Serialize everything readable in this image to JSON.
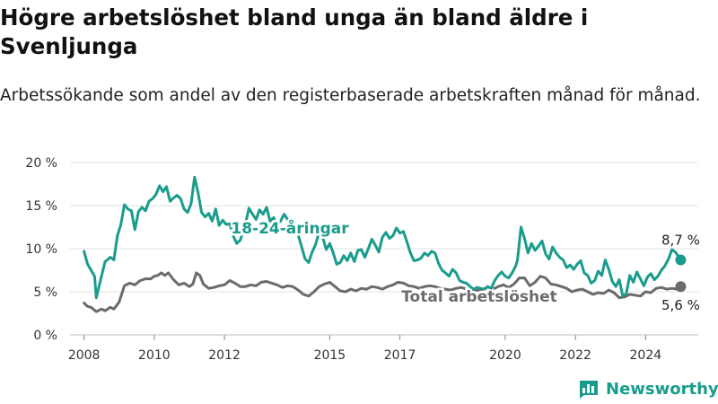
{
  "title": "Högre arbetslöshet bland unga än bland äldre i Svenljunga",
  "subtitle": "Arbetssökande som andel av den registerbaserade arbetskraften månad för månad.",
  "brand": {
    "name": "Newsworthy",
    "icon": "bar-chart-logo-icon",
    "color": "#1a9c8c"
  },
  "chart_data": {
    "type": "line",
    "ylim": [
      0,
      20
    ],
    "xlim": [
      2007.6,
      2025.5
    ],
    "y_ticks": [
      0,
      5,
      10,
      15,
      20
    ],
    "y_tick_labels": [
      "0 %",
      "5 %",
      "10 %",
      "15 %",
      "20 %"
    ],
    "x_ticks": [
      2008,
      2010,
      2012,
      2015,
      2017,
      2020,
      2022,
      2024
    ],
    "x_tick_labels": [
      "2008",
      "2010",
      "2012",
      "2015",
      "2017",
      "2020",
      "2022",
      "2024"
    ],
    "grid": true,
    "series": [
      {
        "name": "18-24-åringar",
        "color": "#1a9c8c",
        "end_label": "8,7 %",
        "points": [
          [
            2008.0,
            9.7
          ],
          [
            2008.1,
            8.2
          ],
          [
            2008.2,
            7.5
          ],
          [
            2008.3,
            6.8
          ],
          [
            2008.35,
            4.3
          ],
          [
            2008.45,
            6.0
          ],
          [
            2008.6,
            8.5
          ],
          [
            2008.75,
            9.0
          ],
          [
            2008.85,
            8.7
          ],
          [
            2008.95,
            11.5
          ],
          [
            2009.05,
            12.8
          ],
          [
            2009.15,
            15.1
          ],
          [
            2009.25,
            14.6
          ],
          [
            2009.35,
            14.4
          ],
          [
            2009.45,
            12.2
          ],
          [
            2009.55,
            14.3
          ],
          [
            2009.65,
            14.8
          ],
          [
            2009.75,
            14.4
          ],
          [
            2009.85,
            15.5
          ],
          [
            2009.95,
            15.8
          ],
          [
            2010.05,
            16.3
          ],
          [
            2010.15,
            17.3
          ],
          [
            2010.25,
            16.6
          ],
          [
            2010.35,
            17.2
          ],
          [
            2010.45,
            15.5
          ],
          [
            2010.55,
            15.9
          ],
          [
            2010.65,
            16.2
          ],
          [
            2010.75,
            15.8
          ],
          [
            2010.85,
            14.6
          ],
          [
            2010.95,
            14.2
          ],
          [
            2011.05,
            15.2
          ],
          [
            2011.15,
            18.3
          ],
          [
            2011.25,
            16.5
          ],
          [
            2011.35,
            14.2
          ],
          [
            2011.45,
            13.7
          ],
          [
            2011.55,
            14.1
          ],
          [
            2011.65,
            13.2
          ],
          [
            2011.75,
            14.6
          ],
          [
            2011.85,
            12.7
          ],
          [
            2011.95,
            13.3
          ],
          [
            2012.05,
            12.8
          ],
          [
            2012.15,
            12.9
          ],
          [
            2012.25,
            11.5
          ],
          [
            2012.35,
            10.6
          ],
          [
            2012.45,
            11.0
          ],
          [
            2012.6,
            12.9
          ],
          [
            2012.7,
            14.7
          ],
          [
            2012.8,
            14.0
          ],
          [
            2012.9,
            13.4
          ],
          [
            2013.0,
            14.5
          ],
          [
            2013.1,
            14.0
          ],
          [
            2013.2,
            14.8
          ],
          [
            2013.3,
            13.2
          ],
          [
            2013.4,
            13.6
          ],
          [
            2013.5,
            12.9
          ],
          [
            2013.6,
            13.2
          ],
          [
            2013.7,
            14.0
          ],
          [
            2013.8,
            13.4
          ],
          [
            2013.9,
            13.1
          ],
          [
            2014.0,
            12.5
          ],
          [
            2014.1,
            11.6
          ],
          [
            2014.2,
            10.2
          ],
          [
            2014.3,
            8.8
          ],
          [
            2014.4,
            8.4
          ],
          [
            2014.5,
            9.6
          ],
          [
            2014.6,
            10.5
          ],
          [
            2014.7,
            12.0
          ],
          [
            2014.8,
            11.3
          ],
          [
            2014.9,
            9.9
          ],
          [
            2015.0,
            10.6
          ],
          [
            2015.1,
            9.5
          ],
          [
            2015.2,
            8.2
          ],
          [
            2015.3,
            8.4
          ],
          [
            2015.4,
            9.2
          ],
          [
            2015.5,
            8.6
          ],
          [
            2015.6,
            9.5
          ],
          [
            2015.7,
            8.5
          ],
          [
            2015.8,
            9.8
          ],
          [
            2015.9,
            9.9
          ],
          [
            2016.0,
            9.0
          ],
          [
            2016.1,
            10.0
          ],
          [
            2016.2,
            11.1
          ],
          [
            2016.3,
            10.4
          ],
          [
            2016.4,
            9.6
          ],
          [
            2016.5,
            11.3
          ],
          [
            2016.6,
            11.9
          ],
          [
            2016.7,
            11.2
          ],
          [
            2016.8,
            11.5
          ],
          [
            2016.9,
            12.4
          ],
          [
            2017.0,
            11.8
          ],
          [
            2017.1,
            12.0
          ],
          [
            2017.2,
            10.8
          ],
          [
            2017.3,
            9.5
          ],
          [
            2017.4,
            8.6
          ],
          [
            2017.5,
            8.7
          ],
          [
            2017.6,
            8.9
          ],
          [
            2017.7,
            9.5
          ],
          [
            2017.8,
            9.2
          ],
          [
            2017.9,
            9.7
          ],
          [
            2018.0,
            9.5
          ],
          [
            2018.1,
            8.3
          ],
          [
            2018.2,
            7.5
          ],
          [
            2018.3,
            7.2
          ],
          [
            2018.4,
            6.8
          ],
          [
            2018.5,
            7.6
          ],
          [
            2018.6,
            7.2
          ],
          [
            2018.7,
            6.3
          ],
          [
            2018.8,
            6.1
          ],
          [
            2018.9,
            6.0
          ],
          [
            2019.0,
            5.6
          ],
          [
            2019.1,
            5.3
          ],
          [
            2019.2,
            5.5
          ],
          [
            2019.3,
            5.4
          ],
          [
            2019.4,
            5.3
          ],
          [
            2019.5,
            5.6
          ],
          [
            2019.6,
            5.4
          ],
          [
            2019.7,
            6.3
          ],
          [
            2019.8,
            6.9
          ],
          [
            2019.9,
            7.3
          ],
          [
            2020.0,
            6.8
          ],
          [
            2020.1,
            6.6
          ],
          [
            2020.2,
            7.2
          ],
          [
            2020.3,
            8.0
          ],
          [
            2020.35,
            8.7
          ],
          [
            2020.45,
            12.5
          ],
          [
            2020.55,
            11.2
          ],
          [
            2020.65,
            9.5
          ],
          [
            2020.75,
            10.6
          ],
          [
            2020.85,
            9.8
          ],
          [
            2020.95,
            10.3
          ],
          [
            2021.05,
            10.9
          ],
          [
            2021.15,
            9.4
          ],
          [
            2021.25,
            8.8
          ],
          [
            2021.35,
            10.2
          ],
          [
            2021.45,
            9.5
          ],
          [
            2021.55,
            9.0
          ],
          [
            2021.65,
            8.7
          ],
          [
            2021.75,
            7.8
          ],
          [
            2021.85,
            8.1
          ],
          [
            2021.95,
            7.6
          ],
          [
            2022.05,
            8.2
          ],
          [
            2022.15,
            8.6
          ],
          [
            2022.25,
            7.2
          ],
          [
            2022.35,
            6.9
          ],
          [
            2022.45,
            6.0
          ],
          [
            2022.55,
            6.3
          ],
          [
            2022.65,
            7.4
          ],
          [
            2022.75,
            6.9
          ],
          [
            2022.85,
            8.7
          ],
          [
            2022.95,
            7.6
          ],
          [
            2023.05,
            6.2
          ],
          [
            2023.15,
            5.6
          ],
          [
            2023.25,
            6.4
          ],
          [
            2023.35,
            4.5
          ],
          [
            2023.45,
            4.8
          ],
          [
            2023.55,
            6.9
          ],
          [
            2023.65,
            6.1
          ],
          [
            2023.75,
            7.3
          ],
          [
            2023.85,
            6.5
          ],
          [
            2023.95,
            5.7
          ],
          [
            2024.05,
            6.7
          ],
          [
            2024.15,
            7.1
          ],
          [
            2024.25,
            6.4
          ],
          [
            2024.35,
            6.8
          ],
          [
            2024.45,
            7.5
          ],
          [
            2024.55,
            8.0
          ],
          [
            2024.65,
            8.8
          ],
          [
            2024.75,
            9.9
          ],
          [
            2024.85,
            9.6
          ],
          [
            2025.0,
            8.7
          ]
        ]
      },
      {
        "name": "Total arbetslöshet",
        "color": "#6b6b6b",
        "end_label": "5,6 %",
        "points": [
          [
            2008.0,
            3.7
          ],
          [
            2008.1,
            3.3
          ],
          [
            2008.2,
            3.2
          ],
          [
            2008.35,
            2.7
          ],
          [
            2008.5,
            3.0
          ],
          [
            2008.6,
            2.8
          ],
          [
            2008.75,
            3.2
          ],
          [
            2008.85,
            3.0
          ],
          [
            2009.0,
            3.8
          ],
          [
            2009.15,
            5.7
          ],
          [
            2009.3,
            6.0
          ],
          [
            2009.45,
            5.8
          ],
          [
            2009.6,
            6.3
          ],
          [
            2009.75,
            6.5
          ],
          [
            2009.9,
            6.5
          ],
          [
            2010.0,
            6.8
          ],
          [
            2010.1,
            6.9
          ],
          [
            2010.2,
            7.2
          ],
          [
            2010.3,
            6.9
          ],
          [
            2010.4,
            7.2
          ],
          [
            2010.55,
            6.4
          ],
          [
            2010.7,
            5.8
          ],
          [
            2010.85,
            6.0
          ],
          [
            2011.0,
            5.6
          ],
          [
            2011.1,
            5.9
          ],
          [
            2011.2,
            7.2
          ],
          [
            2011.3,
            6.9
          ],
          [
            2011.4,
            5.9
          ],
          [
            2011.55,
            5.4
          ],
          [
            2011.7,
            5.5
          ],
          [
            2011.85,
            5.7
          ],
          [
            2012.0,
            5.8
          ],
          [
            2012.15,
            6.3
          ],
          [
            2012.3,
            6.0
          ],
          [
            2012.45,
            5.6
          ],
          [
            2012.6,
            5.6
          ],
          [
            2012.75,
            5.8
          ],
          [
            2012.9,
            5.7
          ],
          [
            2013.05,
            6.1
          ],
          [
            2013.2,
            6.2
          ],
          [
            2013.35,
            6.0
          ],
          [
            2013.5,
            5.8
          ],
          [
            2013.65,
            5.5
          ],
          [
            2013.8,
            5.7
          ],
          [
            2013.95,
            5.6
          ],
          [
            2014.1,
            5.2
          ],
          [
            2014.25,
            4.7
          ],
          [
            2014.4,
            4.5
          ],
          [
            2014.55,
            5.0
          ],
          [
            2014.7,
            5.6
          ],
          [
            2014.85,
            5.9
          ],
          [
            2015.0,
            6.1
          ],
          [
            2015.15,
            5.6
          ],
          [
            2015.3,
            5.1
          ],
          [
            2015.45,
            5.0
          ],
          [
            2015.6,
            5.3
          ],
          [
            2015.75,
            5.1
          ],
          [
            2015.9,
            5.4
          ],
          [
            2016.05,
            5.3
          ],
          [
            2016.2,
            5.6
          ],
          [
            2016.35,
            5.5
          ],
          [
            2016.5,
            5.3
          ],
          [
            2016.65,
            5.6
          ],
          [
            2016.8,
            5.8
          ],
          [
            2016.95,
            6.1
          ],
          [
            2017.1,
            6.0
          ],
          [
            2017.25,
            5.7
          ],
          [
            2017.4,
            5.6
          ],
          [
            2017.55,
            5.4
          ],
          [
            2017.7,
            5.6
          ],
          [
            2017.85,
            5.7
          ],
          [
            2018.0,
            5.6
          ],
          [
            2018.15,
            5.4
          ],
          [
            2018.3,
            5.3
          ],
          [
            2018.45,
            5.2
          ],
          [
            2018.6,
            5.4
          ],
          [
            2018.75,
            5.5
          ],
          [
            2018.9,
            5.3
          ],
          [
            2019.05,
            5.1
          ],
          [
            2019.2,
            5.2
          ],
          [
            2019.35,
            5.3
          ],
          [
            2019.5,
            5.4
          ],
          [
            2019.65,
            5.3
          ],
          [
            2019.8,
            5.6
          ],
          [
            2019.95,
            5.8
          ],
          [
            2020.1,
            5.5
          ],
          [
            2020.25,
            5.9
          ],
          [
            2020.4,
            6.6
          ],
          [
            2020.55,
            6.6
          ],
          [
            2020.7,
            5.7
          ],
          [
            2020.85,
            6.1
          ],
          [
            2021.0,
            6.8
          ],
          [
            2021.15,
            6.6
          ],
          [
            2021.3,
            5.9
          ],
          [
            2021.45,
            5.8
          ],
          [
            2021.6,
            5.6
          ],
          [
            2021.75,
            5.4
          ],
          [
            2021.9,
            5.0
          ],
          [
            2022.05,
            5.2
          ],
          [
            2022.2,
            5.3
          ],
          [
            2022.35,
            5.0
          ],
          [
            2022.5,
            4.7
          ],
          [
            2022.65,
            4.9
          ],
          [
            2022.8,
            4.8
          ],
          [
            2022.95,
            5.2
          ],
          [
            2023.1,
            4.9
          ],
          [
            2023.25,
            4.3
          ],
          [
            2023.4,
            4.4
          ],
          [
            2023.55,
            4.7
          ],
          [
            2023.7,
            4.6
          ],
          [
            2023.85,
            4.5
          ],
          [
            2024.0,
            5.0
          ],
          [
            2024.15,
            4.9
          ],
          [
            2024.3,
            5.4
          ],
          [
            2024.45,
            5.5
          ],
          [
            2024.6,
            5.3
          ],
          [
            2024.75,
            5.4
          ],
          [
            2024.9,
            5.3
          ],
          [
            2025.0,
            5.6
          ]
        ]
      }
    ],
    "legend": "inline labels on the lines"
  }
}
